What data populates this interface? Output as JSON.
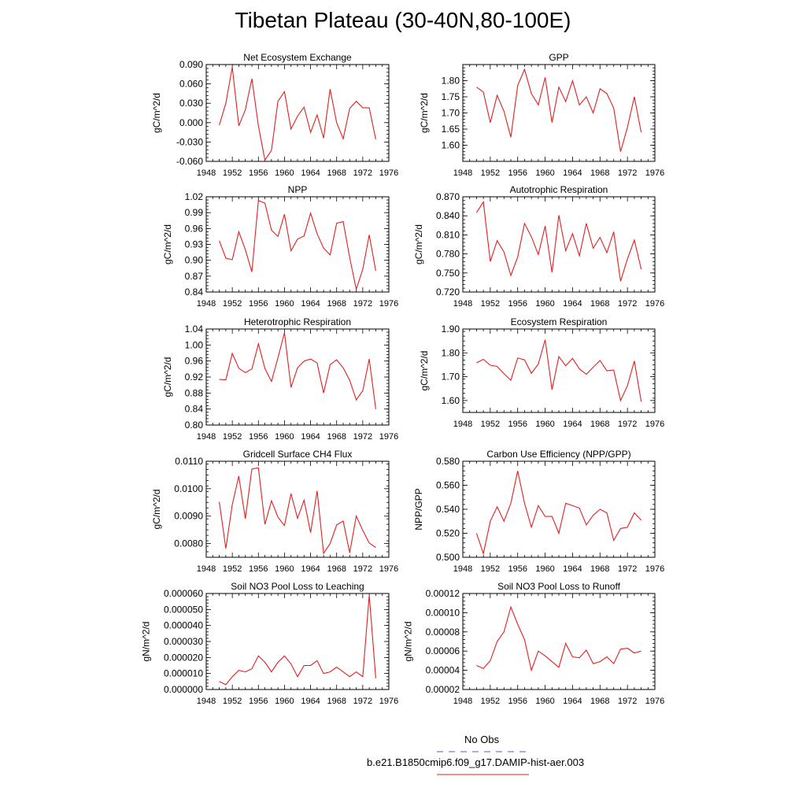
{
  "title": "Tibetan Plateau (30-40N,80-100E)",
  "legend": {
    "entries": [
      {
        "label": "No Obs",
        "color": "#5555dd",
        "dash": true
      },
      {
        "label": "b.e21.B1850cmip6.f09_g17.DAMIP-hist-aer.003",
        "color": "#e02020",
        "dash": false
      }
    ]
  },
  "chart_data": [
    {
      "type": "line",
      "title": "Net Ecosystem Exchange",
      "ylabel": "gC/m^2/d",
      "xlim": [
        1948,
        1976
      ],
      "xticks": [
        "1948",
        "1952",
        "1956",
        "1960",
        "1964",
        "1968",
        "1972",
        "1976"
      ],
      "ylim": [
        -0.06,
        0.09
      ],
      "yticks": [
        "-0.060",
        "-0.030",
        "0.000",
        "0.030",
        "0.060",
        "0.090"
      ],
      "x": [
        1950,
        1951,
        1952,
        1953,
        1954,
        1955,
        1956,
        1957,
        1958,
        1959,
        1960,
        1961,
        1962,
        1963,
        1964,
        1965,
        1966,
        1967,
        1968,
        1969,
        1970,
        1971,
        1972,
        1973,
        1974
      ],
      "series": [
        {
          "color": "#e02020",
          "values": [
            -0.004,
            0.03,
            0.086,
            -0.005,
            0.02,
            0.068,
            -0.005,
            -0.058,
            -0.043,
            0.033,
            0.048,
            -0.01,
            0.01,
            0.024,
            -0.015,
            0.012,
            -0.024,
            0.052,
            0.0,
            -0.025,
            0.022,
            0.033,
            0.023,
            0.023,
            -0.026
          ]
        }
      ]
    },
    {
      "type": "line",
      "title": "GPP",
      "ylabel": "gC/m^2/d",
      "xlim": [
        1948,
        1976
      ],
      "xticks": [
        "1948",
        "1952",
        "1956",
        "1960",
        "1964",
        "1968",
        "1972",
        "1976"
      ],
      "ylim": [
        1.55,
        1.85
      ],
      "yticks": [
        "1.60",
        "1.65",
        "1.70",
        "1.75",
        "1.80"
      ],
      "x": [
        1950,
        1951,
        1952,
        1953,
        1954,
        1955,
        1956,
        1957,
        1958,
        1959,
        1960,
        1961,
        1962,
        1963,
        1964,
        1965,
        1966,
        1967,
        1968,
        1969,
        1970,
        1971,
        1972,
        1973,
        1974
      ],
      "series": [
        {
          "color": "#e02020",
          "values": [
            1.78,
            1.765,
            1.67,
            1.755,
            1.705,
            1.625,
            1.785,
            1.835,
            1.76,
            1.725,
            1.81,
            1.67,
            1.78,
            1.735,
            1.8,
            1.725,
            1.75,
            1.7,
            1.775,
            1.76,
            1.715,
            1.58,
            1.655,
            1.75,
            1.64
          ]
        }
      ]
    },
    {
      "type": "line",
      "title": "NPP",
      "ylabel": "gC/m^2/d",
      "xlim": [
        1948,
        1976
      ],
      "xticks": [
        "1948",
        "1952",
        "1956",
        "1960",
        "1964",
        "1968",
        "1972",
        "1976"
      ],
      "ylim": [
        0.84,
        1.02
      ],
      "yticks": [
        "0.84",
        "0.87",
        "0.90",
        "0.93",
        "0.96",
        "0.99",
        "1.02"
      ],
      "x": [
        1950,
        1951,
        1952,
        1953,
        1954,
        1955,
        1956,
        1957,
        1958,
        1959,
        1960,
        1961,
        1962,
        1963,
        1964,
        1965,
        1966,
        1967,
        1968,
        1969,
        1970,
        1971,
        1972,
        1973,
        1974
      ],
      "series": [
        {
          "color": "#e02020",
          "values": [
            0.937,
            0.904,
            0.901,
            0.954,
            0.92,
            0.878,
            1.013,
            1.008,
            0.957,
            0.945,
            0.987,
            0.918,
            0.94,
            0.946,
            0.989,
            0.95,
            0.923,
            0.91,
            0.97,
            0.973,
            0.905,
            0.845,
            0.883,
            0.948,
            0.88
          ]
        }
      ]
    },
    {
      "type": "line",
      "title": "Autotrophic Respiration",
      "ylabel": "gC/m^2/d",
      "xlim": [
        1948,
        1976
      ],
      "xticks": [
        "1948",
        "1952",
        "1956",
        "1960",
        "1964",
        "1968",
        "1972",
        "1976"
      ],
      "ylim": [
        0.72,
        0.87
      ],
      "yticks": [
        "0.720",
        "0.750",
        "0.780",
        "0.810",
        "0.840",
        "0.870"
      ],
      "x": [
        1950,
        1951,
        1952,
        1953,
        1954,
        1955,
        1956,
        1957,
        1958,
        1959,
        1960,
        1961,
        1962,
        1963,
        1964,
        1965,
        1966,
        1967,
        1968,
        1969,
        1970,
        1971,
        1972,
        1973,
        1974
      ],
      "series": [
        {
          "color": "#e02020",
          "values": [
            0.845,
            0.862,
            0.768,
            0.801,
            0.783,
            0.746,
            0.775,
            0.828,
            0.807,
            0.779,
            0.824,
            0.751,
            0.841,
            0.785,
            0.812,
            0.777,
            0.828,
            0.789,
            0.806,
            0.782,
            0.815,
            0.737,
            0.772,
            0.802,
            0.756
          ]
        }
      ]
    },
    {
      "type": "line",
      "title": "Heterotrophic Respiration",
      "ylabel": "gC/m^2/d",
      "xlim": [
        1948,
        1976
      ],
      "xticks": [
        "1948",
        "1952",
        "1956",
        "1960",
        "1964",
        "1968",
        "1972",
        "1976"
      ],
      "ylim": [
        0.8,
        1.04
      ],
      "yticks": [
        "0.80",
        "0.84",
        "0.88",
        "0.92",
        "0.96",
        "1.00",
        "1.04"
      ],
      "x": [
        1950,
        1951,
        1952,
        1953,
        1954,
        1955,
        1956,
        1957,
        1958,
        1959,
        1960,
        1961,
        1962,
        1963,
        1964,
        1965,
        1966,
        1967,
        1968,
        1969,
        1970,
        1971,
        1972,
        1973,
        1974
      ],
      "series": [
        {
          "color": "#e02020",
          "values": [
            0.914,
            0.913,
            0.979,
            0.942,
            0.931,
            0.94,
            1.003,
            0.941,
            0.909,
            0.968,
            1.031,
            0.894,
            0.943,
            0.96,
            0.965,
            0.955,
            0.88,
            0.951,
            0.963,
            0.943,
            0.912,
            0.863,
            0.886,
            0.965,
            0.84
          ]
        }
      ]
    },
    {
      "type": "line",
      "title": "Ecosystem Respiration",
      "ylabel": "gC/m^2/d",
      "xlim": [
        1948,
        1976
      ],
      "xticks": [
        "1948",
        "1952",
        "1956",
        "1960",
        "1964",
        "1968",
        "1972",
        "1976"
      ],
      "ylim": [
        1.55,
        1.9
      ],
      "yticks": [
        "1.60",
        "1.70",
        "1.80",
        "1.90"
      ],
      "x": [
        1950,
        1951,
        1952,
        1953,
        1954,
        1955,
        1956,
        1957,
        1958,
        1959,
        1960,
        1961,
        1962,
        1963,
        1964,
        1965,
        1966,
        1967,
        1968,
        1969,
        1970,
        1971,
        1972,
        1973,
        1974
      ],
      "series": [
        {
          "color": "#e02020",
          "values": [
            1.758,
            1.773,
            1.748,
            1.743,
            1.712,
            1.685,
            1.778,
            1.771,
            1.714,
            1.753,
            1.855,
            1.645,
            1.784,
            1.746,
            1.777,
            1.733,
            1.71,
            1.74,
            1.768,
            1.725,
            1.728,
            1.6,
            1.662,
            1.766,
            1.596
          ]
        }
      ]
    },
    {
      "type": "line",
      "title": "Gridcell Surface CH4 Flux",
      "ylabel": "gC/m^2/d",
      "xlim": [
        1948,
        1976
      ],
      "xticks": [
        "1948",
        "1952",
        "1956",
        "1960",
        "1964",
        "1968",
        "1972",
        "1976"
      ],
      "ylim": [
        0.0075,
        0.011
      ],
      "yticks": [
        "0.0080",
        "0.0090",
        "0.0100",
        "0.0110"
      ],
      "x": [
        1950,
        1951,
        1952,
        1953,
        1954,
        1955,
        1956,
        1957,
        1958,
        1959,
        1960,
        1961,
        1962,
        1963,
        1964,
        1965,
        1966,
        1967,
        1968,
        1969,
        1970,
        1971,
        1972,
        1973,
        1974
      ],
      "series": [
        {
          "color": "#e02020",
          "values": [
            0.00952,
            0.00782,
            0.00942,
            0.01046,
            0.0089,
            0.01072,
            0.01076,
            0.0087,
            0.00956,
            0.00896,
            0.00866,
            0.00982,
            0.00892,
            0.00958,
            0.0084,
            0.00992,
            0.00764,
            0.008,
            0.00868,
            0.00882,
            0.00766,
            0.009,
            0.00848,
            0.00802,
            0.00786
          ]
        }
      ]
    },
    {
      "type": "line",
      "title": "Carbon Use Efficiency (NPP/GPP)",
      "ylabel": "NPP/GPP",
      "xlim": [
        1948,
        1976
      ],
      "xticks": [
        "1948",
        "1952",
        "1956",
        "1960",
        "1964",
        "1968",
        "1972",
        "1976"
      ],
      "ylim": [
        0.5,
        0.58
      ],
      "yticks": [
        "0.500",
        "0.520",
        "0.540",
        "0.560",
        "0.580"
      ],
      "x": [
        1950,
        1951,
        1952,
        1953,
        1954,
        1955,
        1956,
        1957,
        1958,
        1959,
        1960,
        1961,
        1962,
        1963,
        1964,
        1965,
        1966,
        1967,
        1968,
        1969,
        1970,
        1971,
        1972,
        1973,
        1974
      ],
      "series": [
        {
          "color": "#e02020",
          "values": [
            0.52,
            0.503,
            0.53,
            0.542,
            0.53,
            0.545,
            0.572,
            0.545,
            0.525,
            0.543,
            0.534,
            0.534,
            0.52,
            0.545,
            0.543,
            0.541,
            0.527,
            0.535,
            0.54,
            0.537,
            0.514,
            0.524,
            0.525,
            0.537,
            0.531
          ]
        }
      ]
    },
    {
      "type": "line",
      "title": "Soil NO3 Pool Loss to Leaching",
      "ylabel": "gN/m^2/d",
      "xlim": [
        1948,
        1976
      ],
      "xticks": [
        "1948",
        "1952",
        "1956",
        "1960",
        "1964",
        "1968",
        "1972",
        "1976"
      ],
      "ylim": [
        0.0,
        6e-05
      ],
      "yticks": [
        "0.000000",
        "0.000010",
        "0.000020",
        "0.000030",
        "0.000040",
        "0.000050",
        "0.000060"
      ],
      "x": [
        1950,
        1951,
        1952,
        1953,
        1954,
        1955,
        1956,
        1957,
        1958,
        1959,
        1960,
        1961,
        1962,
        1963,
        1964,
        1965,
        1966,
        1967,
        1968,
        1969,
        1970,
        1971,
        1972,
        1973,
        1974
      ],
      "series": [
        {
          "color": "#e02020",
          "values": [
            5e-06,
            3e-06,
            8e-06,
            1.2e-05,
            1.1e-05,
            1.3e-05,
            2.1e-05,
            1.7e-05,
            1.1e-05,
            1.7e-05,
            2.1e-05,
            1.6e-05,
            8e-06,
            1.5e-05,
            1.5e-05,
            1.8e-05,
            1e-05,
            1.1e-05,
            1.4e-05,
            1.1e-05,
            8e-06,
            1.1e-05,
            8e-06,
            5.9e-05,
            7e-06
          ]
        }
      ]
    },
    {
      "type": "line",
      "title": "Soil NO3 Pool Loss to Runoff",
      "ylabel": "gN/m^2/d",
      "xlim": [
        1948,
        1976
      ],
      "xticks": [
        "1948",
        "1952",
        "1956",
        "1960",
        "1964",
        "1968",
        "1972",
        "1976"
      ],
      "ylim": [
        2e-05,
        0.00012
      ],
      "yticks": [
        "0.00002",
        "0.00004",
        "0.00006",
        "0.00008",
        "0.00010",
        "0.00012"
      ],
      "x": [
        1950,
        1951,
        1952,
        1953,
        1954,
        1955,
        1956,
        1957,
        1958,
        1959,
        1960,
        1961,
        1962,
        1963,
        1964,
        1965,
        1966,
        1967,
        1968,
        1969,
        1970,
        1971,
        1972,
        1973,
        1974
      ],
      "series": [
        {
          "color": "#e02020",
          "values": [
            4.5e-05,
            4.2e-05,
            5e-05,
            7e-05,
            8e-05,
            0.000106,
            8.8e-05,
            7.2e-05,
            4e-05,
            6e-05,
            5.5e-05,
            4.9e-05,
            4.3e-05,
            6.8e-05,
            5.4e-05,
            5.3e-05,
            6.1e-05,
            4.7e-05,
            4.9e-05,
            5.4e-05,
            4.7e-05,
            6.2e-05,
            6.3e-05,
            5.8e-05,
            6e-05
          ]
        }
      ]
    }
  ]
}
